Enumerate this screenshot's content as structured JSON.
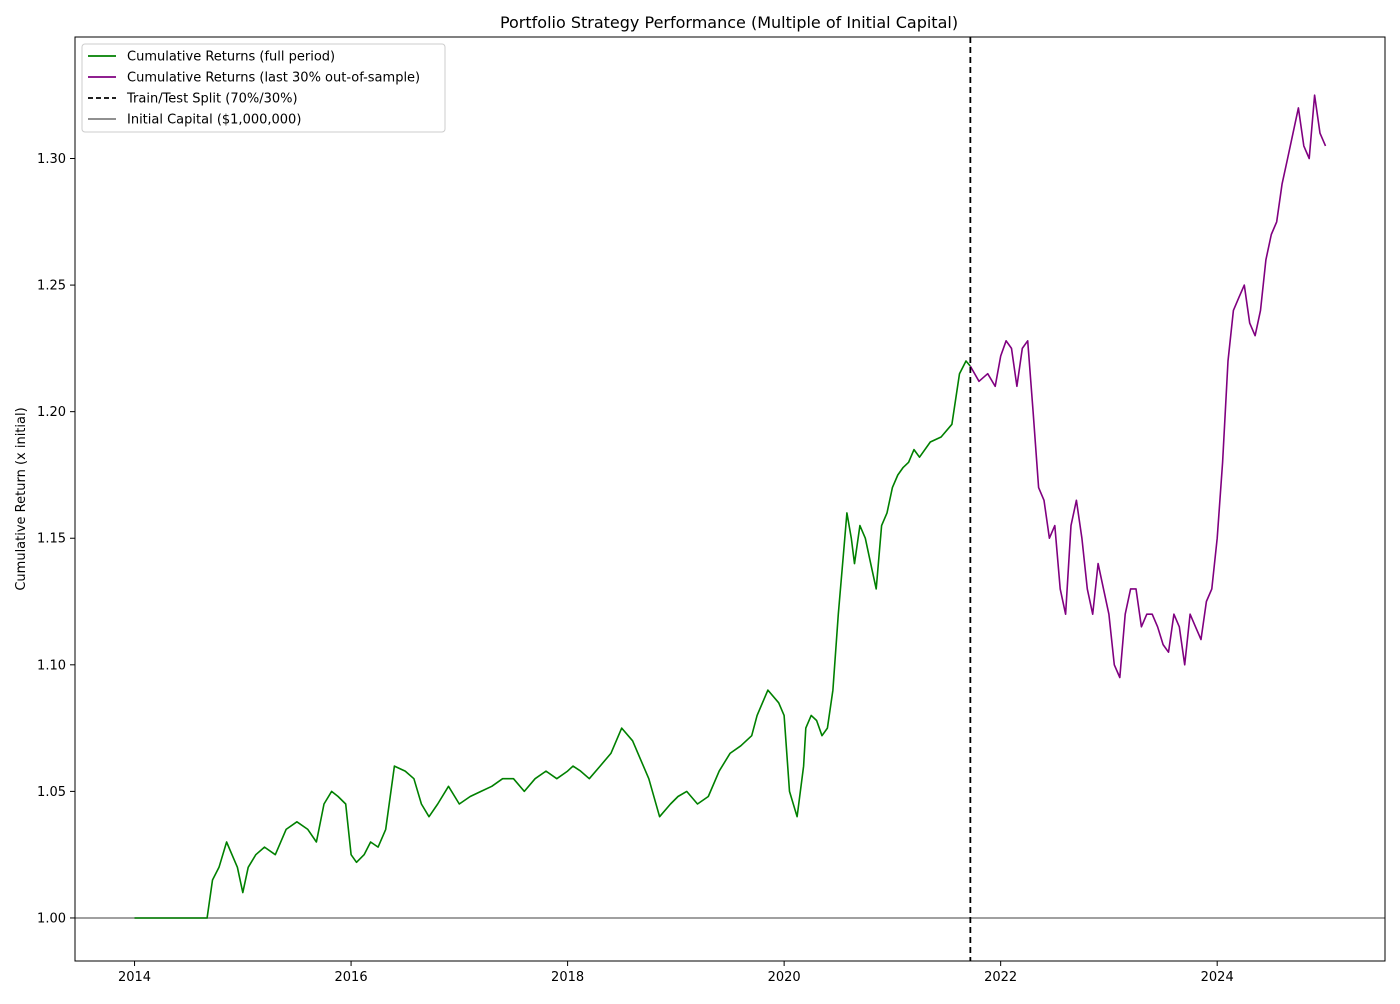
{
  "chart_data": {
    "type": "line",
    "title": "Portfolio Strategy Performance (Multiple of Initial Capital)",
    "xlabel": "",
    "ylabel": "Cumulative Return (x initial)",
    "xlim": [
      2013.45,
      2025.55
    ],
    "ylim": [
      0.983,
      1.348
    ],
    "xticks": [
      2014,
      2016,
      2018,
      2020,
      2022,
      2024
    ],
    "xtick_labels": [
      "2014",
      "2016",
      "2018",
      "2020",
      "2022",
      "2024"
    ],
    "yticks": [
      1.0,
      1.05,
      1.1,
      1.15,
      1.2,
      1.25,
      1.3
    ],
    "ytick_labels": [
      "1.00",
      "1.05",
      "1.10",
      "1.15",
      "1.20",
      "1.25",
      "1.30"
    ],
    "grid": false,
    "legend_position": "top-left",
    "legend": [
      {
        "label": "Cumulative Returns (full period)",
        "color": "#008000",
        "style": "solid"
      },
      {
        "label": "Cumulative Returns (last 30% out-of-sample)",
        "color": "#800080",
        "style": "solid"
      },
      {
        "label": "Train/Test Split (70%/30%)",
        "color": "#000000",
        "style": "dashed"
      },
      {
        "label": "Initial Capital ($1,000,000)",
        "color": "#808080",
        "style": "solid"
      }
    ],
    "series": [
      {
        "name": "Cumulative Returns (full period)",
        "color": "#008000",
        "x": [
          2014.0,
          2014.67,
          2014.72,
          2014.78,
          2014.85,
          2014.9,
          2014.95,
          2015.0,
          2015.05,
          2015.12,
          2015.2,
          2015.3,
          2015.4,
          2015.5,
          2015.6,
          2015.68,
          2015.75,
          2015.82,
          2015.88,
          2015.95,
          2016.0,
          2016.05,
          2016.12,
          2016.18,
          2016.25,
          2016.32,
          2016.4,
          2016.5,
          2016.58,
          2016.65,
          2016.72,
          2016.8,
          2016.9,
          2017.0,
          2017.1,
          2017.2,
          2017.3,
          2017.4,
          2017.5,
          2017.6,
          2017.7,
          2017.8,
          2017.9,
          2018.0,
          2018.05,
          2018.12,
          2018.2,
          2018.3,
          2018.4,
          2018.5,
          2018.6,
          2018.7,
          2018.75,
          2018.85,
          2018.95,
          2019.02,
          2019.1,
          2019.2,
          2019.3,
          2019.4,
          2019.5,
          2019.6,
          2019.7,
          2019.75,
          2019.85,
          2019.95,
          2020.0,
          2020.05,
          2020.12,
          2020.18,
          2020.2,
          2020.25,
          2020.3,
          2020.35,
          2020.4,
          2020.45,
          2020.5,
          2020.55,
          2020.58,
          2020.62,
          2020.65,
          2020.7,
          2020.75,
          2020.8,
          2020.85,
          2020.9,
          2020.95,
          2021.0,
          2021.05,
          2021.1,
          2021.15,
          2021.2,
          2021.25,
          2021.35,
          2021.45,
          2021.55,
          2021.62,
          2021.68,
          2021.72
        ],
        "y": [
          1.0,
          1.0,
          1.015,
          1.02,
          1.03,
          1.025,
          1.02,
          1.01,
          1.02,
          1.025,
          1.028,
          1.025,
          1.035,
          1.038,
          1.035,
          1.03,
          1.045,
          1.05,
          1.048,
          1.045,
          1.025,
          1.022,
          1.025,
          1.03,
          1.028,
          1.035,
          1.06,
          1.058,
          1.055,
          1.045,
          1.04,
          1.045,
          1.052,
          1.045,
          1.048,
          1.05,
          1.052,
          1.055,
          1.055,
          1.05,
          1.055,
          1.058,
          1.055,
          1.058,
          1.06,
          1.058,
          1.055,
          1.06,
          1.065,
          1.075,
          1.07,
          1.06,
          1.055,
          1.04,
          1.045,
          1.048,
          1.05,
          1.045,
          1.048,
          1.058,
          1.065,
          1.068,
          1.072,
          1.08,
          1.09,
          1.085,
          1.08,
          1.05,
          1.04,
          1.06,
          1.075,
          1.08,
          1.078,
          1.072,
          1.075,
          1.09,
          1.12,
          1.145,
          1.16,
          1.15,
          1.14,
          1.155,
          1.15,
          1.14,
          1.13,
          1.155,
          1.16,
          1.17,
          1.175,
          1.178,
          1.18,
          1.185,
          1.182,
          1.188,
          1.19,
          1.195,
          1.215,
          1.22,
          1.218
        ]
      },
      {
        "name": "Cumulative Returns (last 30% out-of-sample)",
        "color": "#800080",
        "x": [
          2021.72,
          2021.8,
          2021.88,
          2021.95,
          2022.0,
          2022.05,
          2022.1,
          2022.15,
          2022.2,
          2022.25,
          2022.3,
          2022.35,
          2022.4,
          2022.45,
          2022.5,
          2022.55,
          2022.6,
          2022.65,
          2022.7,
          2022.75,
          2022.8,
          2022.85,
          2022.9,
          2022.95,
          2023.0,
          2023.05,
          2023.1,
          2023.15,
          2023.2,
          2023.25,
          2023.3,
          2023.35,
          2023.4,
          2023.45,
          2023.5,
          2023.55,
          2023.6,
          2023.65,
          2023.7,
          2023.75,
          2023.8,
          2023.85,
          2023.9,
          2023.95,
          2024.0,
          2024.05,
          2024.1,
          2024.15,
          2024.2,
          2024.25,
          2024.3,
          2024.35,
          2024.4,
          2024.45,
          2024.5,
          2024.55,
          2024.6,
          2024.65,
          2024.7,
          2024.75,
          2024.8,
          2024.85,
          2024.9,
          2024.95,
          2025.0
        ],
        "y": [
          1.218,
          1.212,
          1.215,
          1.21,
          1.222,
          1.228,
          1.225,
          1.21,
          1.225,
          1.228,
          1.2,
          1.17,
          1.165,
          1.15,
          1.155,
          1.13,
          1.12,
          1.155,
          1.165,
          1.15,
          1.13,
          1.12,
          1.14,
          1.13,
          1.12,
          1.1,
          1.095,
          1.12,
          1.13,
          1.13,
          1.115,
          1.12,
          1.12,
          1.115,
          1.108,
          1.105,
          1.12,
          1.115,
          1.1,
          1.12,
          1.115,
          1.11,
          1.125,
          1.13,
          1.15,
          1.18,
          1.22,
          1.24,
          1.245,
          1.25,
          1.235,
          1.23,
          1.24,
          1.26,
          1.27,
          1.275,
          1.29,
          1.3,
          1.31,
          1.32,
          1.305,
          1.3,
          1.325,
          1.31,
          1.305
        ]
      }
    ],
    "split_line": {
      "label": "Train/Test Split (70%/30%)",
      "x": 2021.72,
      "color": "#000000"
    },
    "baseline": {
      "label": "Initial Capital ($1,000,000)",
      "y": 1.0,
      "color": "#808080"
    }
  }
}
